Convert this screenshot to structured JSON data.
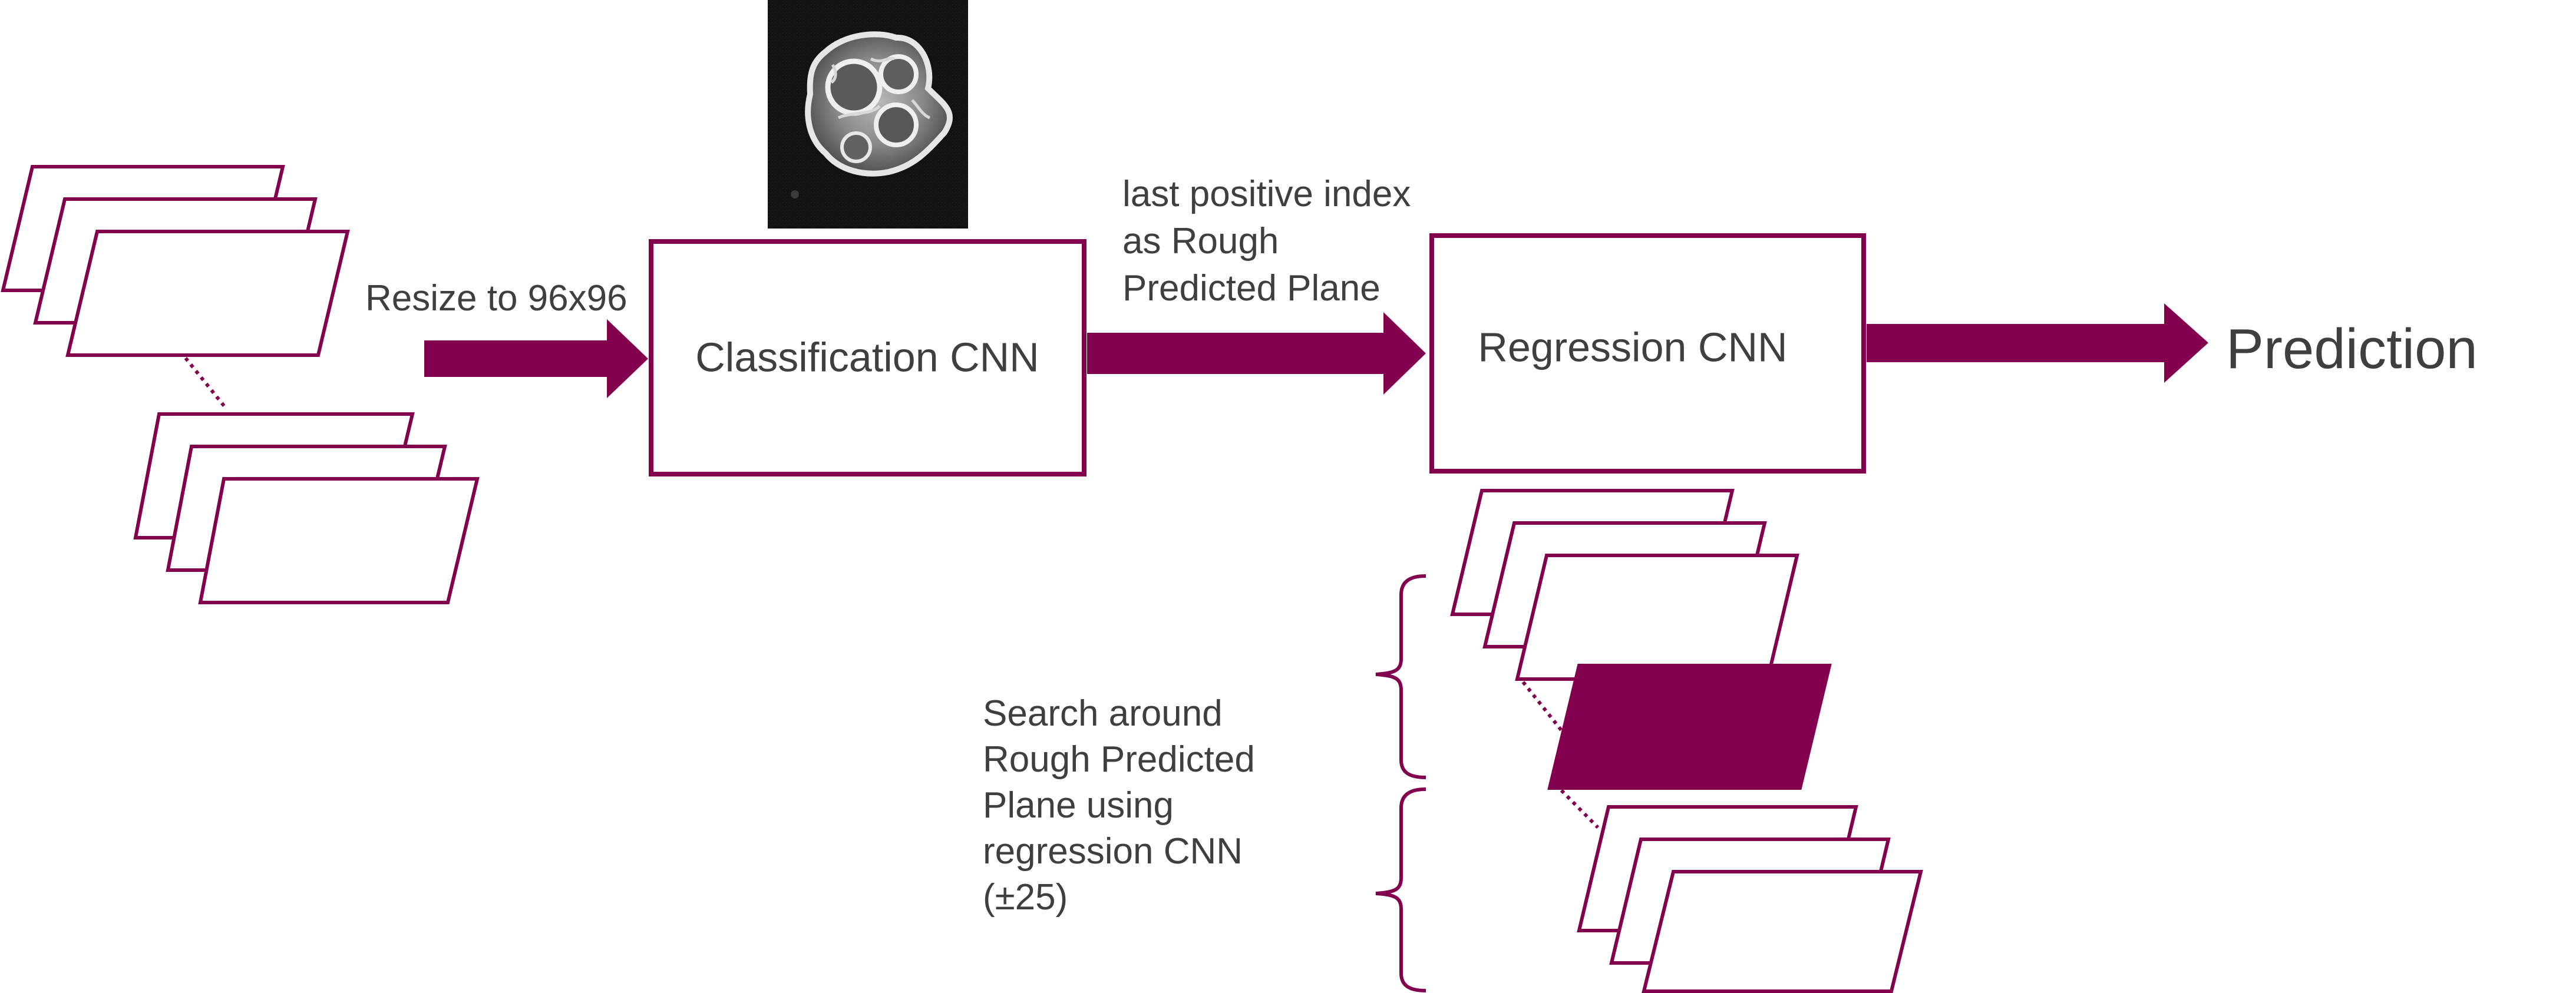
{
  "colors": {
    "accent": "#82004e",
    "text": "#3f3f3f",
    "background": "#ffffff"
  },
  "input_stack": {
    "resize_label": "Resize to 96x96"
  },
  "classification": {
    "label": "Classification CNN",
    "sample_image_icon": "ct-scan-slice-image",
    "output_label_lines": [
      "last positive index",
      "as Rough",
      "Predicted Plane"
    ]
  },
  "regression": {
    "label": "Regression CNN"
  },
  "output": {
    "label": "Prediction"
  },
  "search": {
    "label_lines": [
      "Search around",
      "Rough Predicted",
      "Plane using",
      "regression CNN",
      "(±25)"
    ]
  }
}
